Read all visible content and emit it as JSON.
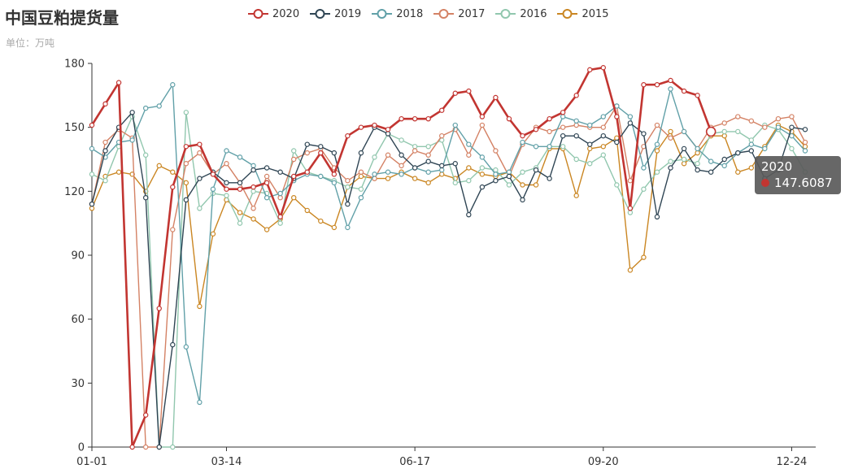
{
  "title": "中国豆粕提货量",
  "subtitle": "单位：万吨",
  "tooltip": {
    "series": "2020",
    "value": "147.6087",
    "color": "#c23531"
  },
  "chart_data": {
    "type": "line",
    "title": "中国豆粕提货量",
    "subtitle": "单位：万吨",
    "ylim": [
      0,
      180
    ],
    "yticks": [
      0,
      30,
      60,
      90,
      120,
      150,
      180
    ],
    "xtick_labels": [
      "01-01",
      "03-14",
      "06-17",
      "09-20",
      "12-24"
    ],
    "xtick_positions": [
      0,
      10,
      24,
      38,
      52
    ],
    "n_points": 54,
    "grid": false,
    "legend_position": "top",
    "series": [
      {
        "name": "2020",
        "color": "#c23531",
        "values": [
          151,
          161,
          171,
          0,
          15,
          65,
          122,
          141,
          142,
          128,
          121,
          121,
          122,
          124,
          108,
          127,
          129,
          138,
          128,
          146,
          150,
          151,
          149,
          154,
          154,
          154,
          158,
          166,
          167,
          155,
          164,
          154,
          146,
          149,
          154,
          157,
          165,
          177,
          178,
          155,
          112,
          170,
          170,
          172,
          167,
          165,
          148,
          null,
          null,
          null,
          null,
          null,
          null,
          null
        ]
      },
      {
        "name": "2019",
        "color": "#2f4554",
        "values": [
          114,
          139,
          150,
          157,
          117,
          0,
          48,
          116,
          126,
          129,
          124,
          124,
          130,
          131,
          129,
          126,
          142,
          141,
          138,
          114,
          138,
          150,
          147,
          137,
          131,
          134,
          132,
          133,
          109,
          122,
          125,
          127,
          116,
          130,
          126,
          146,
          146,
          142,
          146,
          143,
          152,
          147,
          108,
          131,
          140,
          130,
          129,
          135,
          138,
          139,
          126,
          130,
          150,
          149
        ]
      },
      {
        "name": "2018",
        "color": "#61a0a8",
        "values": [
          140,
          136,
          143,
          144,
          159,
          160,
          170,
          47,
          21,
          121,
          139,
          136,
          132,
          117,
          119,
          125,
          128,
          127,
          124,
          103,
          117,
          128,
          129,
          128,
          131,
          129,
          130,
          151,
          142,
          136,
          128,
          129,
          143,
          141,
          141,
          155,
          153,
          151,
          155,
          160,
          155,
          131,
          142,
          168,
          148,
          140,
          134,
          132,
          138,
          142,
          140,
          150,
          146,
          139
        ]
      },
      {
        "name": "2017",
        "color": "#d48265",
        "values": [
          114,
          143,
          149,
          145,
          0,
          0,
          102,
          133,
          138,
          128,
          133,
          124,
          112,
          127,
          117,
          135,
          138,
          140,
          131,
          125,
          129,
          126,
          137,
          132,
          139,
          137,
          146,
          149,
          137,
          151,
          139,
          127,
          142,
          150,
          148,
          150,
          151,
          150,
          150,
          160,
          125,
          141,
          151,
          145,
          148,
          140,
          150,
          152,
          155,
          153,
          150,
          154,
          155,
          143
        ]
      },
      {
        "name": "2016",
        "color": "#91c7ae",
        "values": [
          128,
          125,
          141,
          155,
          137,
          0,
          0,
          157,
          112,
          119,
          118,
          105,
          120,
          119,
          105,
          139,
          129,
          127,
          125,
          122,
          121,
          136,
          147,
          144,
          141,
          141,
          144,
          124,
          125,
          131,
          130,
          123,
          129,
          131,
          141,
          141,
          135,
          133,
          137,
          123,
          110,
          121,
          129,
          134,
          135,
          133,
          147,
          148,
          148,
          144,
          151,
          149,
          140,
          129
        ]
      },
      {
        "name": "2015",
        "color": "#ca8622",
        "values": [
          112,
          127,
          129,
          128,
          120,
          132,
          129,
          124,
          66,
          100,
          116,
          110,
          107,
          102,
          107,
          117,
          111,
          106,
          103,
          122,
          127,
          126,
          126,
          129,
          126,
          124,
          128,
          126,
          131,
          128,
          127,
          129,
          123,
          123,
          140,
          140,
          118,
          140,
          141,
          145,
          83,
          89,
          139,
          148,
          133,
          138,
          146,
          146,
          129,
          131,
          141,
          151,
          148,
          141
        ]
      }
    ]
  }
}
